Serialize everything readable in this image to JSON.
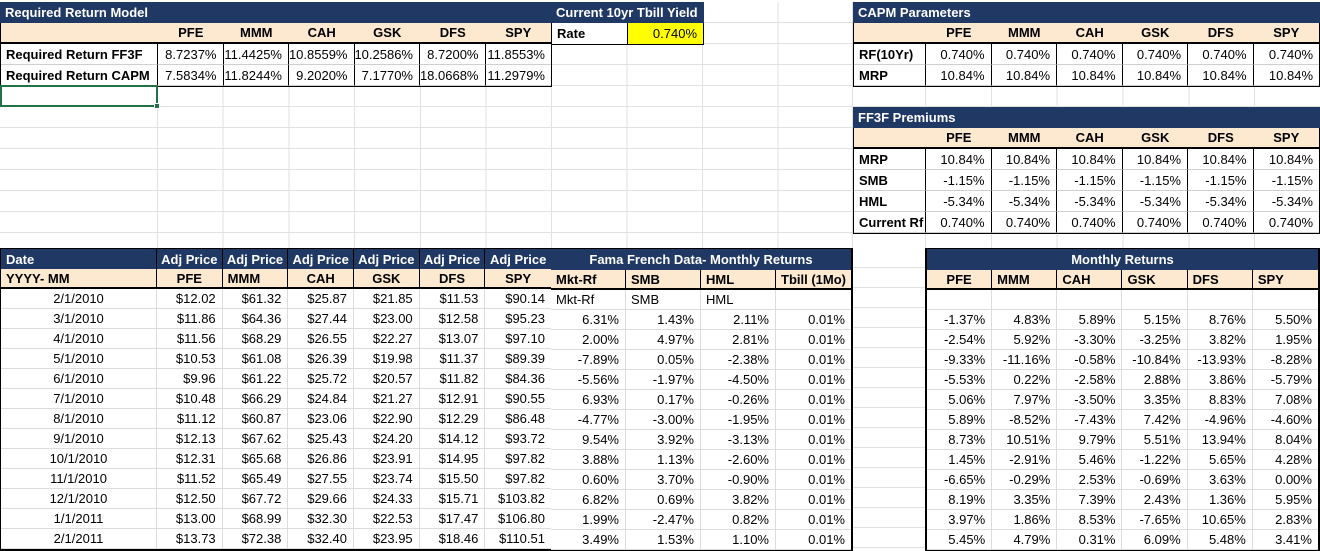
{
  "colors": {
    "header_dark_blue": "#1F3864",
    "header_cream": "#FCE9D0",
    "rate_highlight_yellow": "#FFFF00",
    "selection_green": "#217346"
  },
  "required_return_model": {
    "title": "Required Return Model",
    "columns": [
      "PFE",
      "MMM",
      "CAH",
      "GSK",
      "DFS",
      "SPY"
    ],
    "rows": [
      {
        "label": "Required Return FF3F",
        "values": [
          "8.7237%",
          "11.4425%",
          "10.8559%",
          "10.2586%",
          "8.7200%",
          "11.8553%"
        ]
      },
      {
        "label": "Required Return CAPM",
        "values": [
          "7.5834%",
          "11.8244%",
          "9.2020%",
          "7.1770%",
          "18.0668%",
          "11.2979%"
        ]
      }
    ]
  },
  "tbill": {
    "title": "Current 10yr Tbill Yield",
    "label": "Rate",
    "value": "0.740%"
  },
  "capm_parameters": {
    "title": "CAPM Parameters",
    "columns": [
      "PFE",
      "MMM",
      "CAH",
      "GSK",
      "DFS",
      "SPY"
    ],
    "rows": [
      {
        "label": "RF(10Yr)",
        "values": [
          "0.740%",
          "0.740%",
          "0.740%",
          "0.740%",
          "0.740%",
          "0.740%"
        ]
      },
      {
        "label": "MRP",
        "values": [
          "10.84%",
          "10.84%",
          "10.84%",
          "10.84%",
          "10.84%",
          "10.84%"
        ]
      }
    ]
  },
  "ff3f_premiums": {
    "title": "FF3F Premiums",
    "columns": [
      "PFE",
      "MMM",
      "CAH",
      "GSK",
      "DFS",
      "SPY"
    ],
    "rows": [
      {
        "label": "MRP",
        "values": [
          "10.84%",
          "10.84%",
          "10.84%",
          "10.84%",
          "10.84%",
          "10.84%"
        ]
      },
      {
        "label": "SMB",
        "values": [
          "-1.15%",
          "-1.15%",
          "-1.15%",
          "-1.15%",
          "-1.15%",
          "-1.15%"
        ]
      },
      {
        "label": "HML",
        "values": [
          "-5.34%",
          "-5.34%",
          "-5.34%",
          "-5.34%",
          "-5.34%",
          "-5.34%"
        ]
      },
      {
        "label": "Current Rf",
        "values": [
          "0.740%",
          "0.740%",
          "0.740%",
          "0.740%",
          "0.740%",
          "0.740%"
        ]
      }
    ]
  },
  "prices": {
    "header_top_left": "Date",
    "header_top_repeat": [
      "Adj Price",
      "Adj Price",
      "Adj Price",
      "Adj Price",
      "Adj Price",
      "Adj Price"
    ],
    "header_sub_left": "YYYY- MM",
    "columns": [
      "PFE",
      "MMM",
      "CAH",
      "GSK",
      "DFS",
      "SPY"
    ],
    "rows": [
      {
        "date": "2/1/2010",
        "values": [
          "$12.02",
          "$61.32",
          "$25.87",
          "$21.85",
          "$11.53",
          "$90.14"
        ]
      },
      {
        "date": "3/1/2010",
        "values": [
          "$11.86",
          "$64.36",
          "$27.44",
          "$23.00",
          "$12.58",
          "$95.23"
        ]
      },
      {
        "date": "4/1/2010",
        "values": [
          "$11.56",
          "$68.29",
          "$26.55",
          "$22.27",
          "$13.07",
          "$97.10"
        ]
      },
      {
        "date": "5/1/2010",
        "values": [
          "$10.53",
          "$61.08",
          "$26.39",
          "$19.98",
          "$11.37",
          "$89.39"
        ]
      },
      {
        "date": "6/1/2010",
        "values": [
          "$9.96",
          "$61.22",
          "$25.72",
          "$20.57",
          "$11.82",
          "$84.36"
        ]
      },
      {
        "date": "7/1/2010",
        "values": [
          "$10.48",
          "$66.29",
          "$24.84",
          "$21.27",
          "$12.91",
          "$90.55"
        ]
      },
      {
        "date": "8/1/2010",
        "values": [
          "$11.12",
          "$60.87",
          "$23.06",
          "$22.90",
          "$12.29",
          "$86.48"
        ]
      },
      {
        "date": "9/1/2010",
        "values": [
          "$12.13",
          "$67.62",
          "$25.43",
          "$24.20",
          "$14.12",
          "$93.72"
        ]
      },
      {
        "date": "10/1/2010",
        "values": [
          "$12.31",
          "$65.68",
          "$26.86",
          "$23.91",
          "$14.95",
          "$97.82"
        ]
      },
      {
        "date": "11/1/2010",
        "values": [
          "$11.52",
          "$65.49",
          "$27.55",
          "$23.74",
          "$15.50",
          "$97.82"
        ]
      },
      {
        "date": "12/1/2010",
        "values": [
          "$12.50",
          "$67.72",
          "$29.66",
          "$24.33",
          "$15.71",
          "$103.82"
        ]
      },
      {
        "date": "1/1/2011",
        "values": [
          "$13.00",
          "$68.99",
          "$32.30",
          "$22.53",
          "$17.47",
          "$106.80"
        ]
      },
      {
        "date": "2/1/2011",
        "values": [
          "$13.73",
          "$72.38",
          "$32.40",
          "$23.95",
          "$18.46",
          "$110.51"
        ]
      }
    ]
  },
  "fama_french": {
    "title": "Fama French Data- Monthly Returns",
    "columns": [
      "Mkt-Rf",
      "SMB",
      "HML",
      "Tbill (1Mo)"
    ],
    "rows": [
      [
        "Mkt-Rf",
        "SMB",
        "HML",
        ""
      ],
      [
        "6.31%",
        "1.43%",
        "2.11%",
        "0.01%"
      ],
      [
        "2.00%",
        "4.97%",
        "2.81%",
        "0.01%"
      ],
      [
        "-7.89%",
        "0.05%",
        "-2.38%",
        "0.01%"
      ],
      [
        "-5.56%",
        "-1.97%",
        "-4.50%",
        "0.01%"
      ],
      [
        "6.93%",
        "0.17%",
        "-0.26%",
        "0.01%"
      ],
      [
        "-4.77%",
        "-3.00%",
        "-1.95%",
        "0.01%"
      ],
      [
        "9.54%",
        "3.92%",
        "-3.13%",
        "0.01%"
      ],
      [
        "3.88%",
        "1.13%",
        "-2.60%",
        "0.01%"
      ],
      [
        "0.60%",
        "3.70%",
        "-0.90%",
        "0.01%"
      ],
      [
        "6.82%",
        "0.69%",
        "3.82%",
        "0.01%"
      ],
      [
        "1.99%",
        "-2.47%",
        "0.82%",
        "0.01%"
      ],
      [
        "3.49%",
        "1.53%",
        "1.10%",
        "0.01%"
      ]
    ]
  },
  "monthly_returns": {
    "title": "Monthly Returns",
    "columns": [
      "PFE",
      "MMM",
      "CAH",
      "GSK",
      "DFS",
      "SPY"
    ],
    "rows": [
      [
        "",
        "",
        "",
        "",
        "",
        ""
      ],
      [
        "-1.37%",
        "4.83%",
        "5.89%",
        "5.15%",
        "8.76%",
        "5.50%"
      ],
      [
        "-2.54%",
        "5.92%",
        "-3.30%",
        "-3.25%",
        "3.82%",
        "1.95%"
      ],
      [
        "-9.33%",
        "-11.16%",
        "-0.58%",
        "-10.84%",
        "-13.93%",
        "-8.28%"
      ],
      [
        "-5.53%",
        "0.22%",
        "-2.58%",
        "2.88%",
        "3.86%",
        "-5.79%"
      ],
      [
        "5.06%",
        "7.97%",
        "-3.50%",
        "3.35%",
        "8.83%",
        "7.08%"
      ],
      [
        "5.89%",
        "-8.52%",
        "-7.43%",
        "7.42%",
        "-4.96%",
        "-4.60%"
      ],
      [
        "8.73%",
        "10.51%",
        "9.79%",
        "5.51%",
        "13.94%",
        "8.04%"
      ],
      [
        "1.45%",
        "-2.91%",
        "5.46%",
        "-1.22%",
        "5.65%",
        "4.28%"
      ],
      [
        "-6.65%",
        "-0.29%",
        "2.53%",
        "-0.69%",
        "3.63%",
        "0.00%"
      ],
      [
        "8.19%",
        "3.35%",
        "7.39%",
        "2.43%",
        "1.36%",
        "5.95%"
      ],
      [
        "3.97%",
        "1.86%",
        "8.53%",
        "-7.65%",
        "10.65%",
        "2.83%"
      ],
      [
        "5.45%",
        "4.79%",
        "0.31%",
        "6.09%",
        "5.48%",
        "3.41%"
      ]
    ]
  }
}
